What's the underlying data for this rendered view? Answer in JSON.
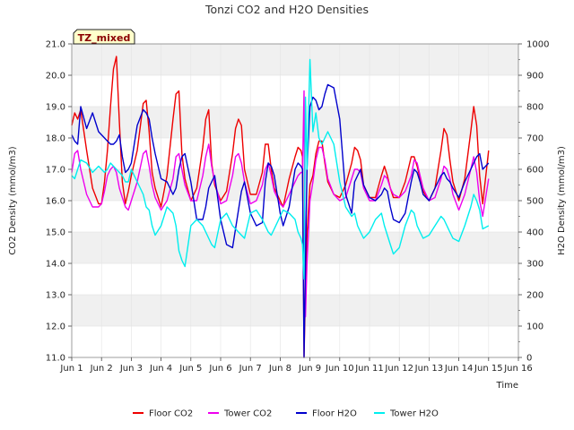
{
  "chart_data": {
    "type": "line",
    "title": "Tonzi CO2 and H2O Densities",
    "xlabel": "Time",
    "ylabel_left": "CO2 Density (mmol/m3)",
    "ylabel_right": "H2O Density (mmol/m3)",
    "badge": "TZ_mixed",
    "x_ticks": [
      {
        "v": 0,
        "label": "Jun 1"
      },
      {
        "v": 1,
        "label": "Jun 2"
      },
      {
        "v": 2,
        "label": "Jun 3"
      },
      {
        "v": 3,
        "label": "Jun 4"
      },
      {
        "v": 4,
        "label": "Jun 5"
      },
      {
        "v": 5,
        "label": "Jun 6"
      },
      {
        "v": 6,
        "label": "Jun 7"
      },
      {
        "v": 7,
        "label": "Jun 8"
      },
      {
        "v": 8,
        "label": "Jun 9"
      },
      {
        "v": 9,
        "label": "Jun 10"
      },
      {
        "v": 10,
        "label": "Jun 11"
      },
      {
        "v": 11,
        "label": "Jun 12"
      },
      {
        "v": 12,
        "label": "Jun 13"
      },
      {
        "v": 13,
        "label": "Jun 14"
      },
      {
        "v": 14,
        "label": "Jun 15"
      },
      {
        "v": 15,
        "label": "Jun 16"
      }
    ],
    "xlim": [
      0,
      15
    ],
    "ylim_left": [
      11.0,
      21.0
    ],
    "ylim_right": [
      0,
      1000
    ],
    "yticks_left": [
      "11.0",
      "12.0",
      "13.0",
      "14.0",
      "15.0",
      "16.0",
      "17.0",
      "18.0",
      "19.0",
      "20.0",
      "21.0"
    ],
    "yticks_right": [
      "0",
      "100",
      "200",
      "300",
      "400",
      "500",
      "600",
      "700",
      "800",
      "900",
      "1000"
    ],
    "grid": true,
    "legend_position": "bottom",
    "series": [
      {
        "name": "Floor CO2",
        "axis": "left",
        "color": "#ee0000",
        "x": [
          0.0,
          0.1,
          0.2,
          0.3,
          0.5,
          0.7,
          0.9,
          1.0,
          1.1,
          1.2,
          1.3,
          1.4,
          1.5,
          1.6,
          1.7,
          1.8,
          1.9,
          2.0,
          2.2,
          2.4,
          2.5,
          2.6,
          2.7,
          2.8,
          3.0,
          3.2,
          3.4,
          3.5,
          3.6,
          3.7,
          3.8,
          4.0,
          4.2,
          4.4,
          4.5,
          4.6,
          4.7,
          4.8,
          5.0,
          5.2,
          5.4,
          5.5,
          5.6,
          5.7,
          5.8,
          6.0,
          6.2,
          6.4,
          6.5,
          6.6,
          6.7,
          6.8,
          7.0,
          7.1,
          7.3,
          7.5,
          7.6,
          7.7,
          7.75,
          7.8,
          7.85,
          7.9,
          8.0,
          8.1,
          8.2,
          8.3,
          8.4,
          8.5,
          8.6,
          8.8,
          9.0,
          9.2,
          9.4,
          9.5,
          9.6,
          9.7,
          9.8,
          10.0,
          10.2,
          10.4,
          10.5,
          10.6,
          10.7,
          10.8,
          11.0,
          11.2,
          11.4,
          11.5,
          11.6,
          11.7,
          11.8,
          12.0,
          12.2,
          12.4,
          12.5,
          12.6,
          12.7,
          12.8,
          13.0,
          13.2,
          13.4,
          13.5,
          13.6,
          13.7,
          13.8,
          14.0
        ],
        "y": [
          18.4,
          18.8,
          18.6,
          18.9,
          17.6,
          16.4,
          15.9,
          15.9,
          16.6,
          17.6,
          19.0,
          20.2,
          20.6,
          18.5,
          16.6,
          15.9,
          16.3,
          16.8,
          17.6,
          19.1,
          19.2,
          18.2,
          16.9,
          16.4,
          15.8,
          16.8,
          18.6,
          19.4,
          19.5,
          17.5,
          16.7,
          16.0,
          16.4,
          17.7,
          18.6,
          18.9,
          17.2,
          16.5,
          16.0,
          16.3,
          17.5,
          18.3,
          18.6,
          18.4,
          17.0,
          16.2,
          16.2,
          16.9,
          17.8,
          17.8,
          17.0,
          16.4,
          16.0,
          15.8,
          16.7,
          17.4,
          17.7,
          17.6,
          17.4,
          11.0,
          13.2,
          14.9,
          16.5,
          16.8,
          17.5,
          17.9,
          17.9,
          17.2,
          16.6,
          16.2,
          16.1,
          16.5,
          17.2,
          17.7,
          17.6,
          17.3,
          16.5,
          16.1,
          16.1,
          16.8,
          17.1,
          16.8,
          16.4,
          16.1,
          16.1,
          16.6,
          17.4,
          17.4,
          17.1,
          16.7,
          16.3,
          16.0,
          16.4,
          17.6,
          18.3,
          18.1,
          17.3,
          16.6,
          16.0,
          16.7,
          18.2,
          19.0,
          18.4,
          16.8,
          15.9,
          17.6
        ]
      },
      {
        "name": "Tower CO2",
        "axis": "left",
        "color": "#ee00ee",
        "x": [
          0.0,
          0.1,
          0.2,
          0.3,
          0.5,
          0.7,
          0.9,
          1.0,
          1.1,
          1.2,
          1.3,
          1.4,
          1.5,
          1.6,
          1.7,
          1.8,
          1.9,
          2.0,
          2.2,
          2.4,
          2.5,
          2.6,
          2.7,
          2.8,
          3.0,
          3.2,
          3.4,
          3.5,
          3.6,
          3.7,
          3.8,
          4.0,
          4.2,
          4.4,
          4.5,
          4.6,
          4.7,
          4.8,
          5.0,
          5.2,
          5.4,
          5.5,
          5.6,
          5.7,
          5.8,
          6.0,
          6.2,
          6.4,
          6.5,
          6.6,
          6.7,
          6.8,
          7.0,
          7.1,
          7.3,
          7.5,
          7.6,
          7.7,
          7.75,
          7.8,
          7.85,
          7.9,
          8.0,
          8.1,
          8.2,
          8.3,
          8.4,
          8.5,
          8.6,
          8.8,
          9.0,
          9.2,
          9.4,
          9.5,
          9.6,
          9.7,
          9.8,
          10.0,
          10.2,
          10.4,
          10.5,
          10.6,
          10.7,
          10.8,
          11.0,
          11.2,
          11.4,
          11.5,
          11.6,
          11.7,
          11.8,
          12.0,
          12.2,
          12.4,
          12.5,
          12.6,
          12.7,
          12.8,
          13.0,
          13.2,
          13.4,
          13.5,
          13.6,
          13.7,
          13.8,
          14.0
        ],
        "y": [
          16.9,
          17.5,
          17.6,
          17.0,
          16.2,
          15.8,
          15.8,
          15.9,
          16.3,
          16.8,
          17.0,
          17.1,
          16.9,
          16.4,
          16.1,
          15.8,
          15.7,
          16.0,
          16.6,
          17.5,
          17.6,
          17.1,
          16.5,
          16.1,
          15.7,
          16.0,
          16.7,
          17.4,
          17.5,
          17.0,
          16.5,
          16.0,
          16.0,
          16.8,
          17.4,
          17.8,
          17.1,
          16.6,
          15.9,
          16.0,
          16.8,
          17.4,
          17.5,
          17.2,
          16.6,
          15.9,
          16.0,
          16.5,
          17.0,
          17.2,
          16.8,
          16.3,
          15.9,
          15.8,
          16.2,
          16.6,
          16.8,
          16.9,
          16.9,
          19.5,
          12.3,
          14.0,
          16.0,
          16.6,
          17.3,
          17.7,
          17.7,
          17.3,
          16.7,
          16.2,
          16.0,
          16.1,
          16.7,
          17.0,
          17.0,
          16.9,
          16.4,
          16.0,
          16.0,
          16.5,
          16.8,
          16.7,
          16.4,
          16.2,
          16.1,
          16.3,
          16.8,
          17.3,
          17.2,
          16.8,
          16.4,
          16.0,
          16.1,
          16.7,
          17.1,
          17.0,
          16.7,
          16.2,
          15.7,
          16.2,
          17.0,
          17.4,
          16.9,
          16.0,
          15.5,
          16.7
        ]
      },
      {
        "name": "Floor H2O",
        "axis": "right",
        "color": "#0000cc",
        "x": [
          0.0,
          0.1,
          0.2,
          0.3,
          0.5,
          0.7,
          0.9,
          1.0,
          1.1,
          1.2,
          1.3,
          1.4,
          1.5,
          1.6,
          1.7,
          1.8,
          1.9,
          2.0,
          2.2,
          2.4,
          2.5,
          2.6,
          2.7,
          2.8,
          3.0,
          3.2,
          3.4,
          3.5,
          3.6,
          3.7,
          3.8,
          4.0,
          4.2,
          4.4,
          4.5,
          4.6,
          4.7,
          4.8,
          5.0,
          5.2,
          5.4,
          5.5,
          5.6,
          5.7,
          5.8,
          6.0,
          6.2,
          6.4,
          6.5,
          6.6,
          6.7,
          6.8,
          7.0,
          7.1,
          7.3,
          7.5,
          7.6,
          7.7,
          7.75,
          7.8,
          7.85,
          7.9,
          8.0,
          8.1,
          8.2,
          8.3,
          8.4,
          8.5,
          8.6,
          8.8,
          9.0,
          9.2,
          9.4,
          9.5,
          9.6,
          9.7,
          9.8,
          10.0,
          10.2,
          10.4,
          10.5,
          10.6,
          10.7,
          10.8,
          11.0,
          11.2,
          11.4,
          11.5,
          11.6,
          11.7,
          11.8,
          12.0,
          12.2,
          12.4,
          12.5,
          12.6,
          12.7,
          12.8,
          13.0,
          13.2,
          13.4,
          13.5,
          13.6,
          13.7,
          13.8,
          14.0
        ],
        "y": [
          710,
          690,
          680,
          800,
          730,
          780,
          720,
          710,
          700,
          690,
          680,
          680,
          690,
          710,
          640,
          590,
          600,
          620,
          740,
          790,
          780,
          760,
          700,
          650,
          570,
          560,
          520,
          540,
          600,
          640,
          650,
          560,
          440,
          440,
          480,
          540,
          560,
          580,
          440,
          360,
          350,
          410,
          470,
          530,
          560,
          460,
          420,
          430,
          560,
          620,
          610,
          580,
          460,
          420,
          480,
          600,
          620,
          610,
          600,
          0,
          300,
          600,
          800,
          830,
          820,
          790,
          800,
          840,
          870,
          860,
          760,
          520,
          460,
          560,
          580,
          600,
          550,
          510,
          500,
          520,
          540,
          530,
          480,
          440,
          430,
          460,
          560,
          600,
          590,
          560,
          520,
          500,
          540,
          580,
          590,
          570,
          560,
          540,
          510,
          560,
          600,
          620,
          640,
          650,
          600,
          620
        ]
      },
      {
        "name": "Tower H2O",
        "axis": "right",
        "color": "#00eeee",
        "x": [
          0.0,
          0.1,
          0.2,
          0.3,
          0.5,
          0.7,
          0.9,
          1.0,
          1.1,
          1.2,
          1.3,
          1.4,
          1.5,
          1.6,
          1.7,
          1.8,
          1.9,
          2.0,
          2.2,
          2.4,
          2.5,
          2.6,
          2.7,
          2.8,
          3.0,
          3.2,
          3.4,
          3.5,
          3.6,
          3.7,
          3.8,
          4.0,
          4.2,
          4.4,
          4.5,
          4.6,
          4.7,
          4.8,
          5.0,
          5.2,
          5.4,
          5.5,
          5.6,
          5.7,
          5.8,
          6.0,
          6.2,
          6.4,
          6.5,
          6.6,
          6.7,
          6.8,
          7.0,
          7.1,
          7.3,
          7.5,
          7.6,
          7.7,
          7.75,
          7.8,
          7.85,
          7.9,
          8.0,
          8.1,
          8.2,
          8.3,
          8.4,
          8.5,
          8.6,
          8.8,
          9.0,
          9.2,
          9.4,
          9.5,
          9.6,
          9.7,
          9.8,
          10.0,
          10.2,
          10.4,
          10.5,
          10.6,
          10.7,
          10.8,
          11.0,
          11.2,
          11.4,
          11.5,
          11.6,
          11.7,
          11.8,
          12.0,
          12.2,
          12.4,
          12.5,
          12.6,
          12.7,
          12.8,
          13.0,
          13.2,
          13.4,
          13.5,
          13.6,
          13.7,
          13.8,
          14.0
        ],
        "y": [
          580,
          570,
          600,
          630,
          620,
          590,
          610,
          600,
          590,
          600,
          620,
          610,
          600,
          590,
          580,
          560,
          560,
          600,
          560,
          520,
          480,
          470,
          420,
          390,
          420,
          480,
          460,
          420,
          340,
          310,
          290,
          420,
          440,
          420,
          400,
          380,
          360,
          350,
          440,
          460,
          420,
          410,
          400,
          390,
          380,
          460,
          470,
          440,
          420,
          400,
          390,
          410,
          450,
          470,
          460,
          440,
          400,
          380,
          360,
          250,
          830,
          600,
          950,
          720,
          780,
          700,
          680,
          700,
          720,
          680,
          560,
          480,
          450,
          460,
          420,
          400,
          380,
          400,
          440,
          460,
          420,
          390,
          360,
          330,
          350,
          420,
          470,
          460,
          420,
          400,
          380,
          390,
          420,
          450,
          440,
          420,
          400,
          380,
          370,
          420,
          480,
          520,
          500,
          470,
          410,
          420
        ]
      }
    ]
  }
}
